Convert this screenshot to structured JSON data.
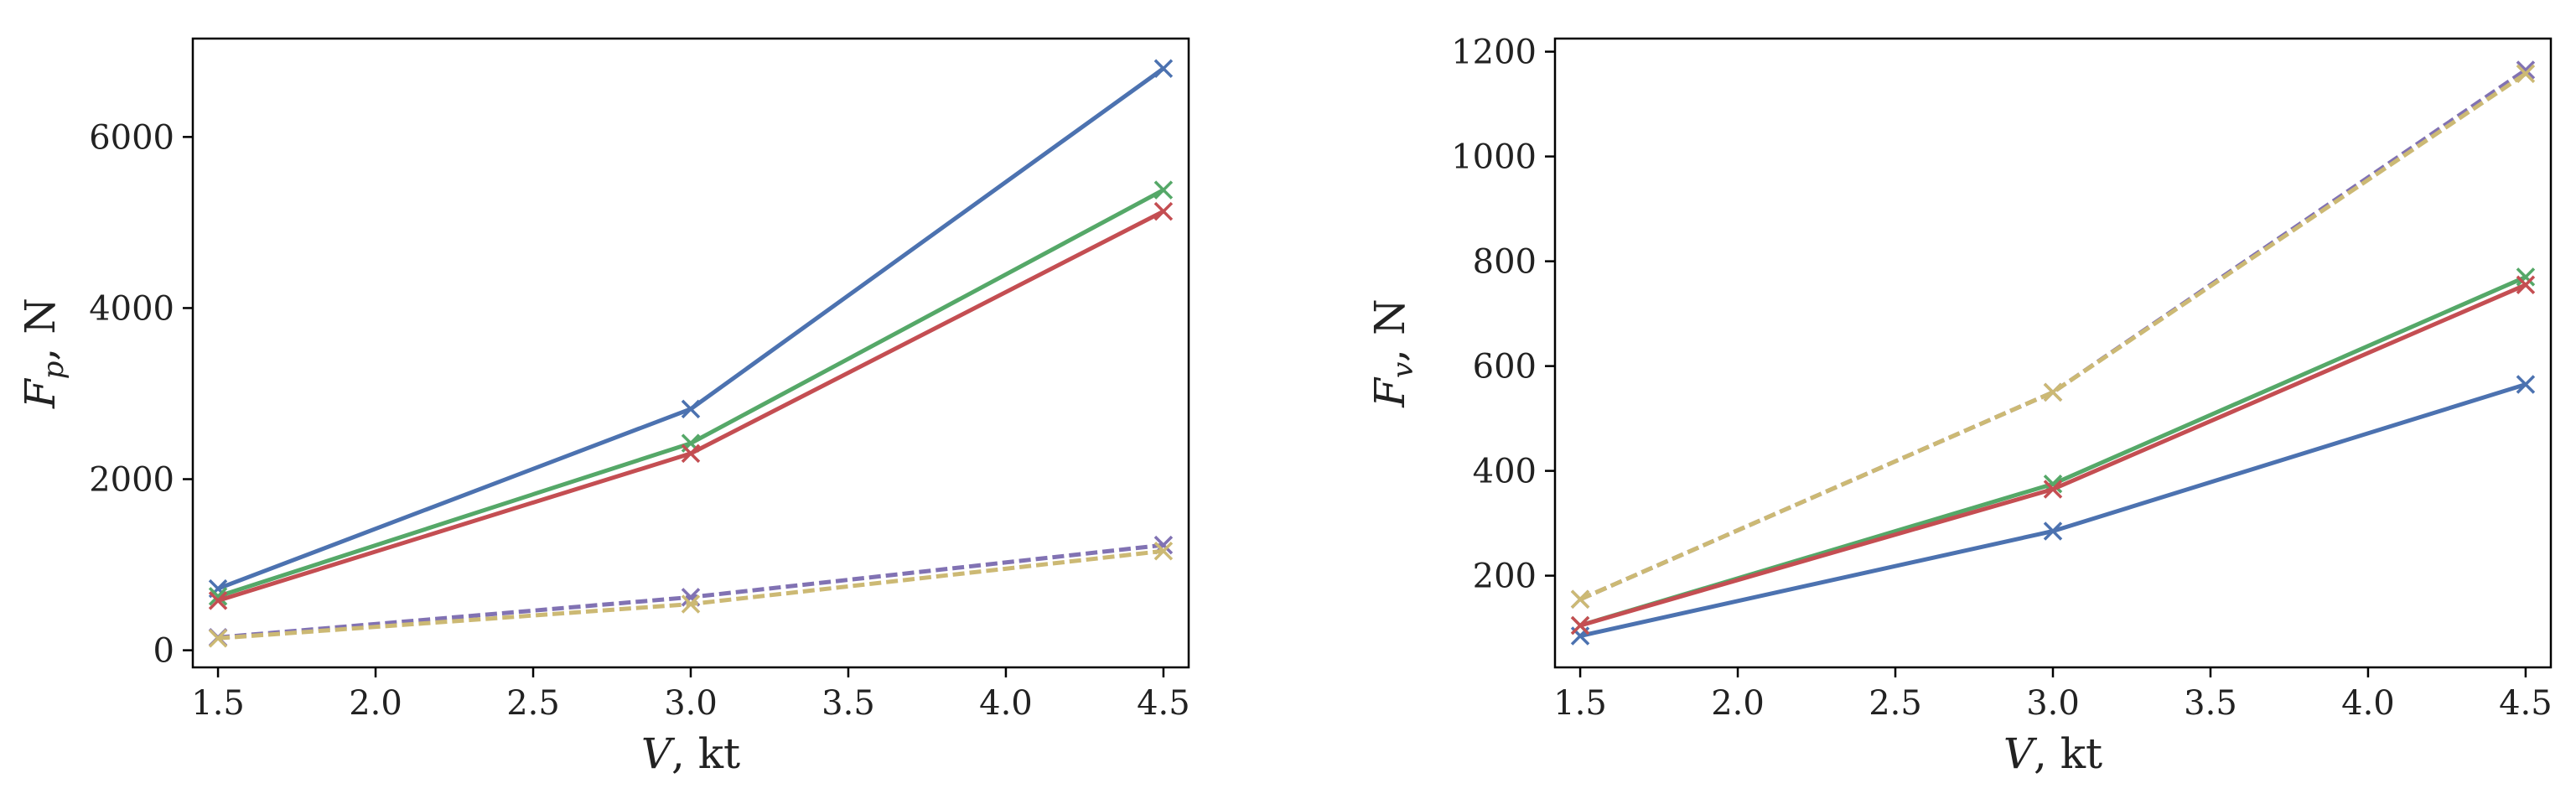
{
  "chart_data": [
    {
      "type": "line",
      "xlabel": {
        "var": "V",
        "rest": ", kt"
      },
      "ylabel": {
        "var": "F",
        "sub": "p",
        "rest": ", N"
      },
      "xlim": [
        1.42,
        4.58
      ],
      "ylim": [
        -200,
        7150
      ],
      "xticks": [
        1.5,
        2.0,
        2.5,
        3.0,
        3.5,
        4.0,
        4.5
      ],
      "xtick_labels": [
        "1.5",
        "2.0",
        "2.5",
        "3.0",
        "3.5",
        "4.0",
        "4.5"
      ],
      "yticks": [
        0,
        2000,
        4000,
        6000
      ],
      "ytick_labels": [
        "0",
        "2000",
        "4000",
        "6000"
      ],
      "x": [
        1.5,
        3.0,
        4.5
      ],
      "series": [
        {
          "name": "blue",
          "color": "#4c72b0",
          "dash": false,
          "values": [
            720,
            2820,
            6800
          ]
        },
        {
          "name": "green",
          "color": "#55a868",
          "dash": false,
          "values": [
            630,
            2420,
            5380
          ]
        },
        {
          "name": "red",
          "color": "#c44e52",
          "dash": false,
          "values": [
            580,
            2300,
            5130
          ]
        },
        {
          "name": "purple",
          "color": "#8172b3",
          "dash": true,
          "values": [
            150,
            620,
            1230
          ]
        },
        {
          "name": "tan",
          "color": "#ccb974",
          "dash": true,
          "values": [
            140,
            540,
            1160
          ]
        }
      ]
    },
    {
      "type": "line",
      "xlabel": {
        "var": "V",
        "rest": ", kt"
      },
      "ylabel": {
        "var": "F",
        "sub": "v",
        "rest": ", N"
      },
      "xlim": [
        1.42,
        4.58
      ],
      "ylim": [
        25,
        1225
      ],
      "xticks": [
        1.5,
        2.0,
        2.5,
        3.0,
        3.5,
        4.0,
        4.5
      ],
      "xtick_labels": [
        "1.5",
        "2.0",
        "2.5",
        "3.0",
        "3.5",
        "4.0",
        "4.5"
      ],
      "yticks": [
        200,
        400,
        600,
        800,
        1000,
        1200
      ],
      "ytick_labels": [
        "200",
        "400",
        "600",
        "800",
        "1000",
        "1200"
      ],
      "x": [
        1.5,
        3.0,
        4.5
      ],
      "series": [
        {
          "name": "blue",
          "color": "#4c72b0",
          "dash": false,
          "values": [
            85,
            285,
            565
          ]
        },
        {
          "name": "green",
          "color": "#55a868",
          "dash": false,
          "values": [
            105,
            375,
            770
          ]
        },
        {
          "name": "red",
          "color": "#c44e52",
          "dash": false,
          "values": [
            105,
            365,
            755
          ]
        },
        {
          "name": "purple",
          "color": "#8172b3",
          "dash": true,
          "values": [
            155,
            550,
            1165
          ]
        },
        {
          "name": "tan",
          "color": "#ccb974",
          "dash": true,
          "values": [
            155,
            550,
            1158
          ]
        }
      ]
    }
  ]
}
